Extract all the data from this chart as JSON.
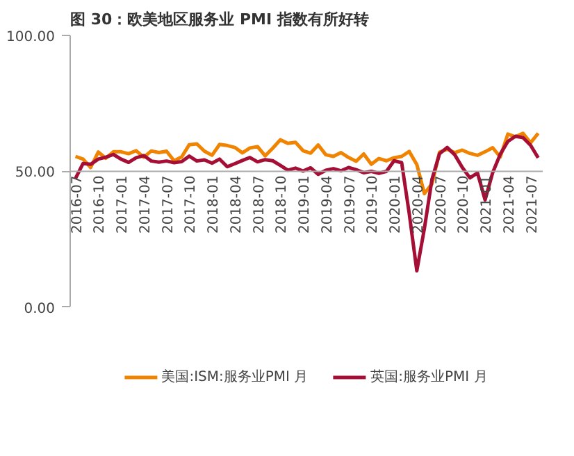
{
  "chart_data": {
    "type": "line",
    "title": "图 30：欧美地区服务业 PMI 指数有所好转",
    "categories": [
      "2016-07",
      null,
      null,
      "2016-10",
      null,
      null,
      "2017-01",
      null,
      null,
      "2017-04",
      null,
      null,
      "2017-07",
      null,
      null,
      "2017-10",
      null,
      null,
      "2018-01",
      null,
      null,
      "2018-04",
      null,
      null,
      "2018-07",
      null,
      null,
      "2018-10",
      null,
      null,
      "2019-01",
      null,
      null,
      "2019-04",
      null,
      null,
      "2019-07",
      null,
      null,
      "2019-10",
      null,
      null,
      "2020-01",
      null,
      null,
      "2020-04",
      null,
      null,
      "2020-07",
      null,
      null,
      "2020-10",
      null,
      null,
      "2021-01",
      null,
      null,
      "2021-04",
      null,
      null,
      "2021-07",
      null
    ],
    "series": [
      {
        "name": "美国:ISM:服务业PMI 月",
        "color": "#f08300",
        "values": [
          55.5,
          54.5,
          51.4,
          57.1,
          54.8,
          57.2,
          57.2,
          56.5,
          57.6,
          55.2,
          57.5,
          56.9,
          57.4,
          53.9,
          55.3,
          59.8,
          60.1,
          57.4,
          55.9,
          59.9,
          59.5,
          58.8,
          56.8,
          58.6,
          59.1,
          55.7,
          58.5,
          61.6,
          60.3,
          60.7,
          57.6,
          56.7,
          59.7,
          56.1,
          55.5,
          56.9,
          55.1,
          53.7,
          56.4,
          52.6,
          54.7,
          53.9,
          55.0,
          55.5,
          57.3,
          52.5,
          41.8,
          45.4,
          57.1,
          58.1,
          56.9,
          57.8,
          56.6,
          55.9,
          57.2,
          58.7,
          55.3,
          63.7,
          62.7,
          64.0,
          60.5,
          64.0
        ]
      },
      {
        "name": "英国:服务业PMI 月",
        "color": "#a50f35",
        "values": [
          47.4,
          52.9,
          52.6,
          54.5,
          55.2,
          56.2,
          54.5,
          53.3,
          55.0,
          55.8,
          53.8,
          53.4,
          53.8,
          53.2,
          53.6,
          55.6,
          53.8,
          54.2,
          53.0,
          54.5,
          51.7,
          52.8,
          54.0,
          55.1,
          53.5,
          54.3,
          53.9,
          52.2,
          50.4,
          51.2,
          50.1,
          51.3,
          48.9,
          50.4,
          51.0,
          50.2,
          51.4,
          50.6,
          49.5,
          50.0,
          49.3,
          50.0,
          53.9,
          53.2,
          34.5,
          13.4,
          29.0,
          47.1,
          56.5,
          58.8,
          56.1,
          51.4,
          47.6,
          49.4,
          39.5,
          49.5,
          56.3,
          61.0,
          62.9,
          62.4,
          59.6,
          55.0
        ]
      }
    ],
    "ylim": [
      0,
      100
    ],
    "yticks": [
      {
        "value": 0,
        "label": "0.00"
      },
      {
        "value": 50,
        "label": "50.00"
      },
      {
        "value": 100,
        "label": "100.00"
      }
    ],
    "grid": false,
    "legend": "bottom",
    "marker": "none",
    "line_style": "solid"
  }
}
